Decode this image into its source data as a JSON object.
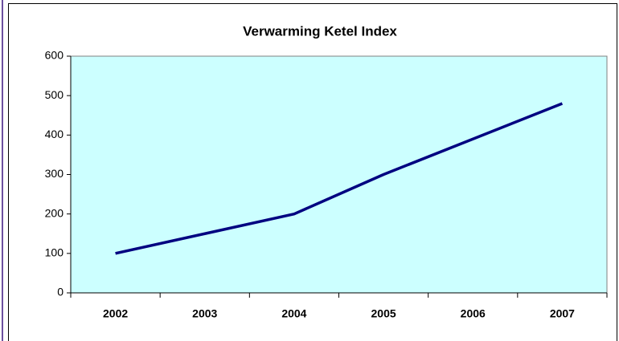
{
  "chart_data": {
    "type": "line",
    "title": "Verwarming Ketel Index",
    "categories": [
      "2002",
      "2003",
      "2004",
      "2005",
      "2006",
      "2007"
    ],
    "values": [
      100,
      150,
      200,
      300,
      390,
      480
    ],
    "color": "#000080",
    "ylim": [
      0,
      600
    ],
    "yticks": [
      0,
      100,
      200,
      300,
      400,
      500,
      600
    ],
    "grid": false
  }
}
